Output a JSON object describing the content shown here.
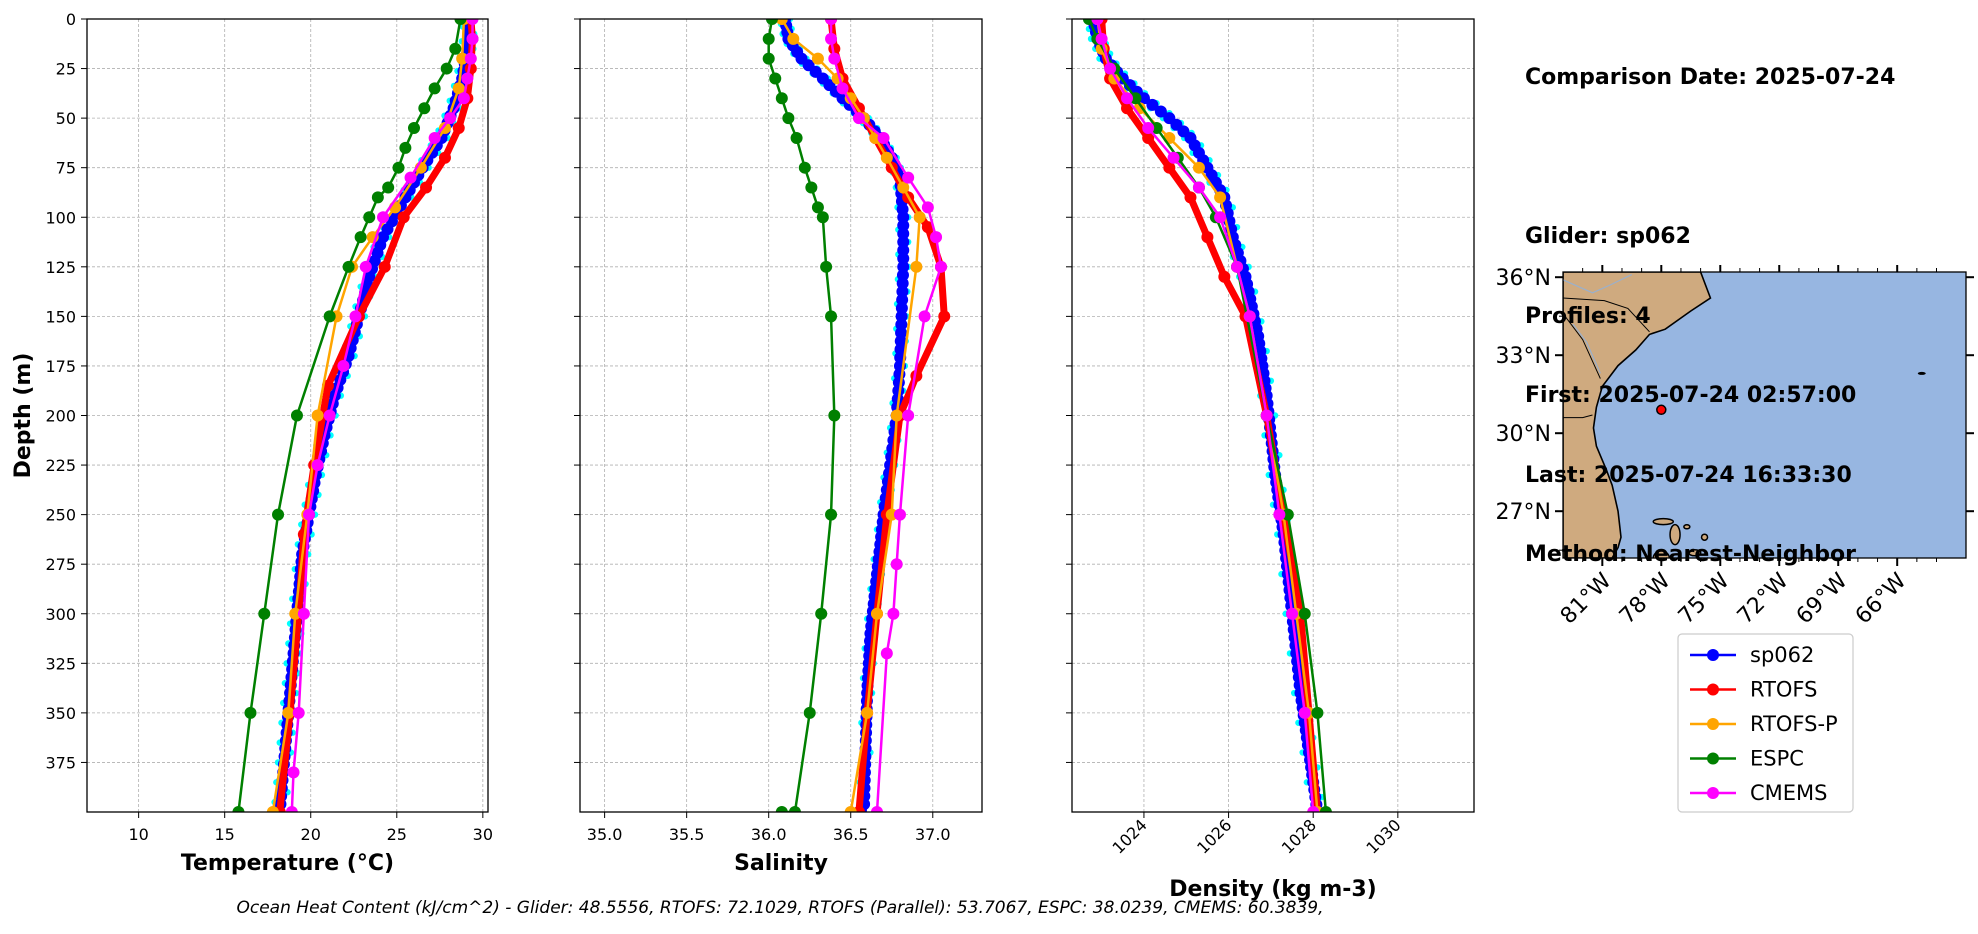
{
  "info": {
    "comparison_label": "Comparison Date: 2025-07-24",
    "glider_label": "Glider: sp062",
    "profiles_label": "Profiles: 4",
    "first_label": "First: 2025-07-24 02:57:00",
    "last_label": "Last: 2025-07-24 16:33:30",
    "method_label": "Method: Nearest-Neighbor"
  },
  "footer": "Ocean Heat Content (kJ/cm^2) - Glider: 48.5556,  RTOFS: 72.1029,  RTOFS (Parallel): 53.7067,  ESPC: 38.0239,  CMEMS: 60.3839,",
  "colors": {
    "sp062": "#0000ff",
    "glider_cloud": "#00ffff",
    "RTOFS": "#ff0000",
    "RTOFS-P": "#ffa500",
    "ESPC": "#008000",
    "CMEMS": "#ff00ff",
    "ocean": "#97b6e1",
    "land": "#cfaa7f"
  },
  "map": {
    "lat_ticks": [
      "36°N",
      "33°N",
      "30°N",
      "27°N"
    ],
    "lon_ticks": [
      "81°W",
      "78°W",
      "75°W",
      "72°W",
      "69°W",
      "66°W"
    ],
    "lon_range": [
      -83.0,
      -62.5
    ],
    "lat_range": [
      25.2,
      36.2
    ],
    "glider_location": [
      -78.0,
      30.9
    ]
  },
  "legend": [
    "sp062",
    "RTOFS",
    "RTOFS-P",
    "ESPC",
    "CMEMS"
  ],
  "chart_data": [
    {
      "type": "line",
      "xlabel": "Temperature (°C)",
      "ylabel": "Depth (m)",
      "xlim": [
        7,
        30.3
      ],
      "ylim": [
        400,
        0
      ],
      "xticks": [
        10,
        15,
        20,
        25,
        30
      ],
      "yticks": [
        0,
        25,
        50,
        75,
        100,
        125,
        150,
        175,
        200,
        225,
        250,
        275,
        300,
        325,
        350,
        375
      ],
      "grid": true,
      "series": [
        {
          "name": "sp062",
          "x": [
            29.2,
            29.1,
            28.8,
            28.3,
            27.6,
            26.5,
            25.5,
            24.2,
            23.4,
            22.8,
            22.2,
            21.4,
            20.8,
            20.3,
            19.9,
            19.5,
            19.2,
            19.0,
            18.8,
            18.6,
            18.4,
            18.2
          ],
          "y": [
            0,
            15,
            30,
            45,
            60,
            75,
            90,
            110,
            130,
            150,
            170,
            190,
            210,
            230,
            250,
            270,
            300,
            320,
            340,
            360,
            380,
            400
          ]
        },
        {
          "name": "RTOFS",
          "x": [
            29.3,
            29.4,
            29.3,
            29.1,
            28.6,
            27.8,
            26.7,
            25.4,
            24.3,
            22.8,
            21.0,
            20.2,
            19.6,
            19.3,
            18.8,
            18.2
          ],
          "y": [
            0,
            10,
            25,
            40,
            55,
            70,
            85,
            100,
            125,
            150,
            185,
            225,
            260,
            300,
            350,
            400
          ]
        },
        {
          "name": "RTOFS-P",
          "x": [
            28.9,
            28.8,
            28.6,
            27.8,
            26.4,
            24.9,
            23.6,
            22.4,
            21.5,
            20.4,
            19.8,
            19.1,
            18.7,
            17.8
          ],
          "y": [
            0,
            20,
            35,
            55,
            75,
            95,
            110,
            125,
            150,
            200,
            250,
            300,
            350,
            400
          ]
        },
        {
          "name": "ESPC",
          "x": [
            28.7,
            28.4,
            27.9,
            27.2,
            26.6,
            26.0,
            25.5,
            25.1,
            24.5,
            23.9,
            23.4,
            22.9,
            22.2,
            21.1,
            19.2,
            18.1,
            17.3,
            16.5,
            15.8
          ],
          "y": [
            0,
            15,
            25,
            35,
            45,
            55,
            65,
            75,
            85,
            90,
            100,
            110,
            125,
            150,
            200,
            250,
            300,
            350,
            400
          ]
        },
        {
          "name": "CMEMS",
          "x": [
            29.4,
            29.4,
            29.3,
            29.1,
            28.9,
            28.1,
            27.2,
            25.8,
            24.2,
            23.2,
            22.6,
            21.9,
            21.1,
            20.4,
            19.9,
            19.6,
            19.3,
            19.0,
            18.9
          ],
          "y": [
            0,
            10,
            20,
            30,
            40,
            50,
            60,
            80,
            100,
            125,
            150,
            175,
            200,
            225,
            250,
            300,
            350,
            380,
            400
          ]
        }
      ]
    },
    {
      "type": "line",
      "xlabel": "Salinity",
      "ylabel": "",
      "xlim": [
        34.85,
        37.3
      ],
      "ylim": [
        400,
        0
      ],
      "xticks": [
        35.0,
        35.5,
        36.0,
        36.5,
        37.0
      ],
      "grid": true,
      "series": [
        {
          "name": "sp062",
          "x": [
            36.1,
            36.12,
            36.2,
            36.33,
            36.45,
            36.58,
            36.68,
            36.75,
            36.8,
            36.82,
            36.82,
            36.81,
            36.8,
            36.78,
            36.74,
            36.7,
            36.66,
            36.62,
            36.6,
            36.58
          ],
          "y": [
            0,
            10,
            20,
            30,
            40,
            50,
            60,
            70,
            80,
            100,
            125,
            150,
            175,
            200,
            225,
            250,
            280,
            310,
            340,
            400
          ]
        },
        {
          "name": "RTOFS",
          "x": [
            36.38,
            36.4,
            36.45,
            36.55,
            36.65,
            36.75,
            36.85,
            36.97,
            37.05,
            37.07,
            36.9,
            36.8,
            36.72,
            36.66,
            36.6,
            36.55
          ],
          "y": [
            0,
            15,
            30,
            45,
            60,
            75,
            90,
            105,
            125,
            150,
            180,
            200,
            250,
            300,
            350,
            400
          ]
        },
        {
          "name": "RTOFS-P",
          "x": [
            36.08,
            36.15,
            36.3,
            36.42,
            36.5,
            36.58,
            36.65,
            36.72,
            36.82,
            36.92,
            36.9,
            36.78,
            36.75,
            36.66,
            36.6,
            36.5
          ],
          "y": [
            0,
            10,
            20,
            30,
            40,
            50,
            60,
            70,
            85,
            100,
            125,
            200,
            250,
            300,
            350,
            400
          ]
        },
        {
          "name": "ESPC",
          "x": [
            36.02,
            36.0,
            36.0,
            36.04,
            36.08,
            36.12,
            36.17,
            36.22,
            36.26,
            36.3,
            36.33,
            36.35,
            36.38,
            36.4,
            36.38,
            36.32,
            36.25,
            36.16,
            36.08
          ],
          "y": [
            0,
            10,
            20,
            30,
            40,
            50,
            60,
            75,
            85,
            95,
            100,
            125,
            150,
            200,
            250,
            300,
            350,
            400,
            400
          ]
        },
        {
          "name": "CMEMS",
          "x": [
            36.38,
            36.38,
            36.4,
            36.45,
            36.55,
            36.7,
            36.85,
            36.97,
            37.02,
            37.05,
            36.95,
            36.85,
            36.8,
            36.78,
            36.76,
            36.72,
            36.66
          ],
          "y": [
            0,
            10,
            20,
            35,
            50,
            60,
            80,
            95,
            110,
            125,
            150,
            200,
            250,
            275,
            300,
            320,
            400
          ]
        }
      ]
    },
    {
      "type": "line",
      "xlabel": "Density (kg m-3)",
      "ylabel": "",
      "xlim": [
        1022.3,
        1031.8
      ],
      "ylim": [
        400,
        0
      ],
      "xticks": [
        1024,
        1026,
        1028,
        1030
      ],
      "grid": true,
      "series": [
        {
          "name": "sp062",
          "x": [
            1022.8,
            1022.9,
            1023.1,
            1023.5,
            1024.0,
            1024.6,
            1025.1,
            1025.5,
            1025.9,
            1026.1,
            1026.4,
            1026.7,
            1026.9,
            1027.1,
            1027.3,
            1027.5,
            1027.7,
            1027.9,
            1028.1
          ],
          "y": [
            0,
            10,
            20,
            30,
            40,
            50,
            60,
            75,
            90,
            110,
            130,
            160,
            190,
            230,
            260,
            300,
            340,
            370,
            400
          ]
        },
        {
          "name": "RTOFS",
          "x": [
            1023.0,
            1023.05,
            1023.2,
            1023.6,
            1024.1,
            1024.6,
            1025.1,
            1025.5,
            1025.9,
            1026.4,
            1026.9,
            1027.3,
            1027.7,
            1028.1
          ],
          "y": [
            0,
            15,
            30,
            45,
            60,
            75,
            90,
            110,
            130,
            150,
            200,
            250,
            300,
            400
          ]
        },
        {
          "name": "RTOFS-P",
          "x": [
            1022.9,
            1023.0,
            1023.3,
            1023.9,
            1024.6,
            1025.3,
            1025.8,
            1026.2,
            1026.5,
            1026.9,
            1027.3,
            1027.6,
            1027.9,
            1028.1
          ],
          "y": [
            0,
            15,
            30,
            45,
            60,
            75,
            90,
            125,
            150,
            200,
            250,
            300,
            350,
            400
          ]
        },
        {
          "name": "ESPC",
          "x": [
            1022.7,
            1022.9,
            1023.3,
            1023.8,
            1024.3,
            1024.8,
            1025.3,
            1025.7,
            1026.2,
            1026.9,
            1027.4,
            1027.8,
            1028.1,
            1028.3
          ],
          "y": [
            0,
            10,
            25,
            40,
            55,
            70,
            85,
            100,
            125,
            200,
            250,
            300,
            350,
            400
          ]
        },
        {
          "name": "CMEMS",
          "x": [
            1022.9,
            1023.0,
            1023.2,
            1023.6,
            1024.1,
            1024.7,
            1025.3,
            1025.8,
            1026.2,
            1026.5,
            1026.9,
            1027.2,
            1027.5,
            1027.8,
            1028.0
          ],
          "y": [
            0,
            10,
            25,
            40,
            55,
            70,
            85,
            100,
            125,
            150,
            200,
            250,
            300,
            350,
            400
          ]
        }
      ]
    }
  ]
}
